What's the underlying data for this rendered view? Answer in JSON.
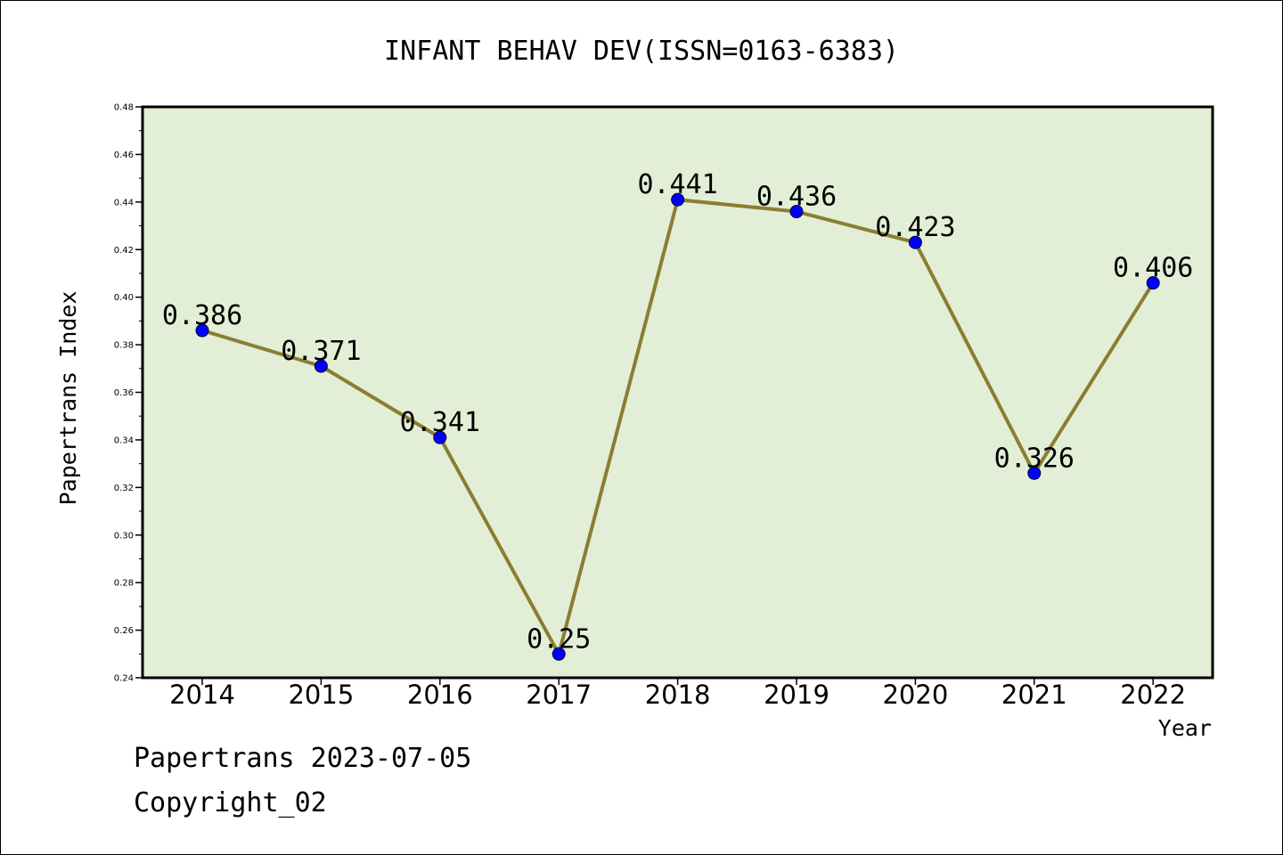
{
  "chart_data": {
    "type": "line",
    "title": "INFANT BEHAV DEV(ISSN=0163-6383)",
    "xlabel": "Year",
    "ylabel": "Papertrans Index",
    "categories": [
      "2014",
      "2015",
      "2016",
      "2017",
      "2018",
      "2019",
      "2020",
      "2021",
      "2022"
    ],
    "values": [
      0.386,
      0.371,
      0.341,
      0.25,
      0.441,
      0.436,
      0.423,
      0.326,
      0.406
    ],
    "data_labels": [
      "0.386",
      "0.371",
      "0.341",
      "0.25",
      "0.441",
      "0.436",
      "0.423",
      "0.326",
      "0.406"
    ],
    "ylim": [
      0.24,
      0.48
    ],
    "yticks": [
      "0.24",
      "0.26",
      "0.28",
      "0.30",
      "0.32",
      "0.34",
      "0.36",
      "0.38",
      "0.40",
      "0.42",
      "0.44",
      "0.46",
      "0.48"
    ],
    "grid": false,
    "colors": {
      "plot_background": "#e2efd6",
      "line": "#8b7d32",
      "marker": "#0000ff"
    }
  },
  "footer": {
    "line1": "Papertrans 2023-07-05",
    "line2": "Copyright_02"
  }
}
